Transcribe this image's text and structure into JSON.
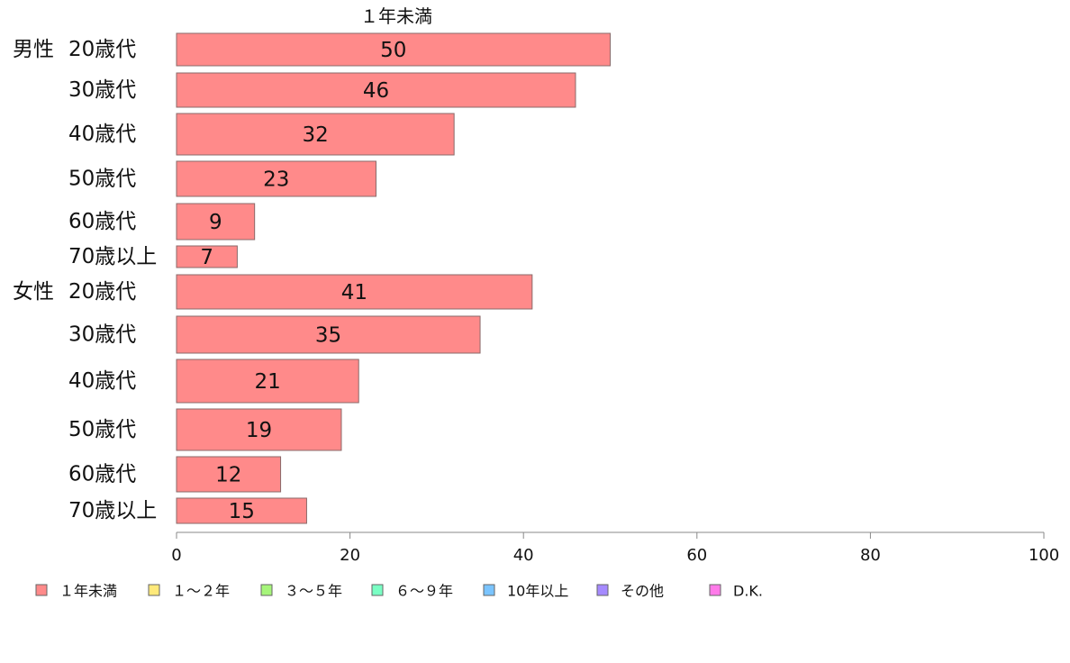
{
  "chart_data": {
    "type": "bar",
    "orientation": "horizontal",
    "title": "１年未満",
    "xlim": [
      0,
      100
    ],
    "xticks": [
      0,
      20,
      40,
      60,
      80,
      100
    ],
    "groups": [
      {
        "label": "男性",
        "categories": [
          "20歳代",
          "30歳代",
          "40歳代",
          "50歳代",
          "60歳代",
          "70歳以上"
        ],
        "values": [
          50,
          46,
          32,
          23,
          9,
          7
        ]
      },
      {
        "label": "女性",
        "categories": [
          "20歳代",
          "30歳代",
          "40歳代",
          "50歳代",
          "60歳代",
          "70歳以上"
        ],
        "values": [
          41,
          35,
          21,
          19,
          12,
          15
        ]
      }
    ],
    "series": [
      {
        "name": "１年未満",
        "color": "#ff8a8a"
      },
      {
        "name": "１～２年",
        "color": "#ffe97a"
      },
      {
        "name": "３～５年",
        "color": "#a6f57a"
      },
      {
        "name": "６～９年",
        "color": "#7affc4"
      },
      {
        "name": "10年以上",
        "color": "#7ac4ff"
      },
      {
        "name": "その他",
        "color": "#a58aff"
      },
      {
        "name": "D.K.",
        "color": "#ff7ae9"
      }
    ],
    "legend_position": "bottom"
  }
}
